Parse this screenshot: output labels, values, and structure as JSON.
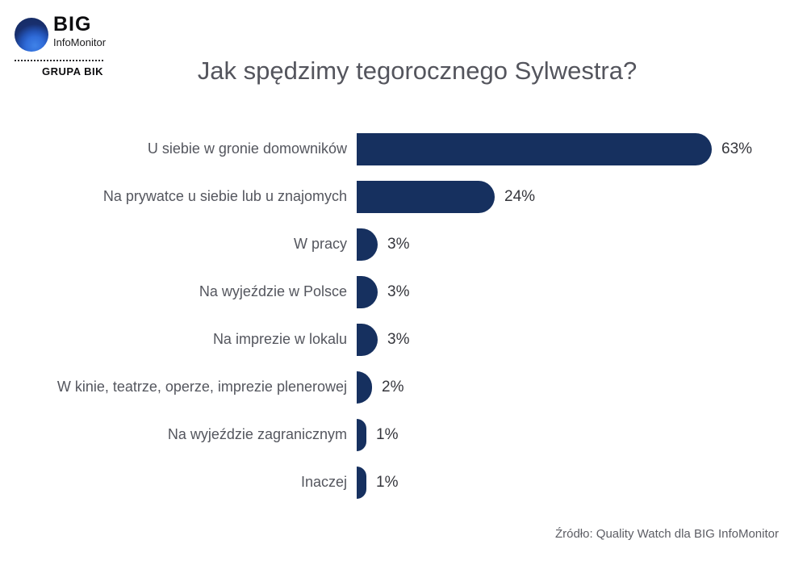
{
  "logo": {
    "big": "BIG",
    "infomonitor": "InfoMonitor",
    "grupa": "GRUPA BIK"
  },
  "title": "Jak spędzimy tegorocznego Sylwestra?",
  "source": "Źródło: Quality Watch dla BIG InfoMonitor",
  "colors": {
    "bar": "#16305f",
    "logo_dark_blue": "#152a5e",
    "logo_light_blue": "#3f82e8",
    "title_text": "#54555d",
    "label_text": "#54565e",
    "value_text": "#35363c"
  },
  "chart_data": {
    "type": "bar",
    "orientation": "horizontal",
    "title": "Jak spędzimy tegorocznego Sylwestra?",
    "categories": [
      "U siebie w gronie domowników",
      "Na prywatce u siebie lub u znajomych",
      "W pracy",
      "Na wyjeździe w Polsce",
      "Na imprezie w lokalu",
      "W kinie, teatrze, operze, imprezie plenerowej",
      "Na wyjeździe zagranicznym",
      "Inaczej"
    ],
    "values": [
      63,
      24,
      3,
      3,
      3,
      2,
      1,
      1
    ],
    "value_labels": [
      "63%",
      "24%",
      "3%",
      "3%",
      "3%",
      "2%",
      "1%",
      "1%"
    ],
    "xlabel": "",
    "ylabel": "",
    "xlim": [
      0,
      70
    ],
    "grid": false,
    "legend": false,
    "bar_color": "#16305f",
    "source": "Źródło: Quality Watch dla BIG InfoMonitor"
  }
}
